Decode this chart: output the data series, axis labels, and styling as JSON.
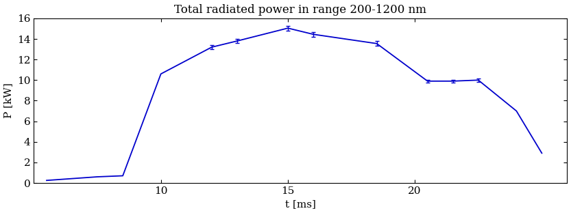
{
  "title": "Total radiated power in range 200-1200 nm",
  "xlabel": "t [ms]",
  "ylabel": "P [kW]",
  "x": [
    5.5,
    7.5,
    8.5,
    10.0,
    12.0,
    13.0,
    15.0,
    16.0,
    18.5,
    20.5,
    21.5,
    22.5,
    24.0,
    25.0
  ],
  "y": [
    0.25,
    0.6,
    0.7,
    10.6,
    13.2,
    13.8,
    15.05,
    14.45,
    13.55,
    9.9,
    9.9,
    10.0,
    7.0,
    2.9
  ],
  "yerr": [
    0,
    0,
    0,
    0,
    0.22,
    0.22,
    0.22,
    0.22,
    0.22,
    0.15,
    0.15,
    0.15,
    0,
    0
  ],
  "xlim": [
    5,
    26
  ],
  "ylim": [
    0,
    16
  ],
  "xticks": [
    10,
    15,
    20
  ],
  "yticks": [
    0,
    2,
    4,
    6,
    8,
    10,
    12,
    14,
    16
  ],
  "line_color": "#0000cc",
  "errorbar_color": "#0000cc",
  "bg_color": "#ffffff",
  "title_fontsize": 12,
  "label_fontsize": 11,
  "tick_fontsize": 11
}
